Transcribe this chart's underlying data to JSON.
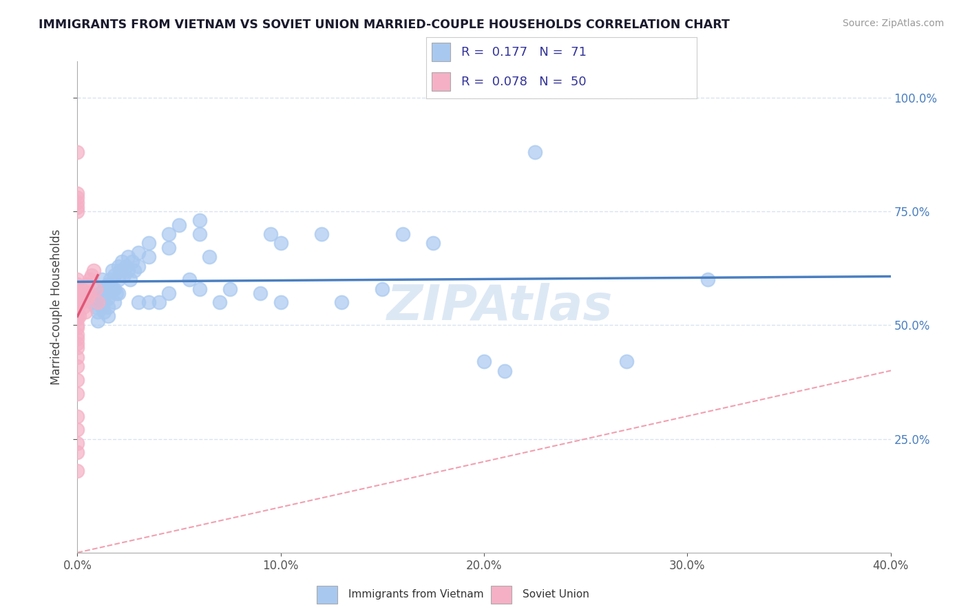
{
  "title": "IMMIGRANTS FROM VIETNAM VS SOVIET UNION MARRIED-COUPLE HOUSEHOLDS CORRELATION CHART",
  "source": "Source: ZipAtlas.com",
  "ylabel": "Married-couple Households",
  "xlim": [
    0.0,
    0.4
  ],
  "ylim": [
    0.0,
    1.08
  ],
  "xtick_vals": [
    0.0,
    0.1,
    0.2,
    0.3,
    0.4
  ],
  "ytick_vals": [
    0.25,
    0.5,
    0.75,
    1.0
  ],
  "legend_vietnam_label": "Immigrants from Vietnam",
  "legend_soviet_label": "Soviet Union",
  "vietnam_R": 0.177,
  "vietnam_N": 71,
  "soviet_R": 0.078,
  "soviet_N": 50,
  "vietnam_color": "#a8c8f0",
  "soviet_color": "#f5b0c5",
  "vietnam_line_color": "#4a7fc1",
  "soviet_line_color": "#e05575",
  "diagonal_color": "#f0a0b0",
  "grid_color": "#d8e4f0",
  "watermark_color": "#dde8f5",
  "vietnam_scatter": [
    [
      0.005,
      0.57
    ],
    [
      0.007,
      0.55
    ],
    [
      0.008,
      0.56
    ],
    [
      0.009,
      0.54
    ],
    [
      0.01,
      0.58
    ],
    [
      0.01,
      0.55
    ],
    [
      0.01,
      0.53
    ],
    [
      0.01,
      0.51
    ],
    [
      0.011,
      0.57
    ],
    [
      0.012,
      0.6
    ],
    [
      0.012,
      0.56
    ],
    [
      0.012,
      0.54
    ],
    [
      0.013,
      0.58
    ],
    [
      0.013,
      0.55
    ],
    [
      0.013,
      0.53
    ],
    [
      0.014,
      0.57
    ],
    [
      0.015,
      0.59
    ],
    [
      0.015,
      0.56
    ],
    [
      0.015,
      0.54
    ],
    [
      0.015,
      0.52
    ],
    [
      0.016,
      0.6
    ],
    [
      0.017,
      0.62
    ],
    [
      0.017,
      0.58
    ],
    [
      0.018,
      0.61
    ],
    [
      0.018,
      0.58
    ],
    [
      0.018,
      0.55
    ],
    [
      0.019,
      0.57
    ],
    [
      0.02,
      0.63
    ],
    [
      0.02,
      0.6
    ],
    [
      0.02,
      0.57
    ],
    [
      0.021,
      0.62
    ],
    [
      0.022,
      0.64
    ],
    [
      0.023,
      0.61
    ],
    [
      0.024,
      0.63
    ],
    [
      0.025,
      0.65
    ],
    [
      0.025,
      0.62
    ],
    [
      0.026,
      0.6
    ],
    [
      0.027,
      0.64
    ],
    [
      0.028,
      0.62
    ],
    [
      0.03,
      0.66
    ],
    [
      0.03,
      0.63
    ],
    [
      0.03,
      0.55
    ],
    [
      0.035,
      0.68
    ],
    [
      0.035,
      0.65
    ],
    [
      0.035,
      0.55
    ],
    [
      0.04,
      0.55
    ],
    [
      0.045,
      0.7
    ],
    [
      0.045,
      0.67
    ],
    [
      0.045,
      0.57
    ],
    [
      0.05,
      0.72
    ],
    [
      0.055,
      0.6
    ],
    [
      0.06,
      0.73
    ],
    [
      0.06,
      0.7
    ],
    [
      0.06,
      0.58
    ],
    [
      0.065,
      0.65
    ],
    [
      0.07,
      0.55
    ],
    [
      0.075,
      0.58
    ],
    [
      0.09,
      0.57
    ],
    [
      0.095,
      0.7
    ],
    [
      0.1,
      0.68
    ],
    [
      0.1,
      0.55
    ],
    [
      0.12,
      0.7
    ],
    [
      0.13,
      0.55
    ],
    [
      0.15,
      0.58
    ],
    [
      0.16,
      0.7
    ],
    [
      0.175,
      0.68
    ],
    [
      0.2,
      0.42
    ],
    [
      0.21,
      0.4
    ],
    [
      0.225,
      0.88
    ],
    [
      0.27,
      0.42
    ],
    [
      0.31,
      0.6
    ]
  ],
  "soviet_scatter": [
    [
      0.0,
      0.88
    ],
    [
      0.0,
      0.79
    ],
    [
      0.0,
      0.78
    ],
    [
      0.0,
      0.77
    ],
    [
      0.0,
      0.76
    ],
    [
      0.0,
      0.75
    ],
    [
      0.0,
      0.6
    ],
    [
      0.0,
      0.59
    ],
    [
      0.0,
      0.58
    ],
    [
      0.0,
      0.57
    ],
    [
      0.0,
      0.56
    ],
    [
      0.0,
      0.555
    ],
    [
      0.0,
      0.55
    ],
    [
      0.0,
      0.545
    ],
    [
      0.0,
      0.54
    ],
    [
      0.0,
      0.53
    ],
    [
      0.0,
      0.52
    ],
    [
      0.0,
      0.515
    ],
    [
      0.0,
      0.5
    ],
    [
      0.0,
      0.495
    ],
    [
      0.0,
      0.48
    ],
    [
      0.0,
      0.47
    ],
    [
      0.0,
      0.46
    ],
    [
      0.0,
      0.45
    ],
    [
      0.0,
      0.43
    ],
    [
      0.0,
      0.41
    ],
    [
      0.0,
      0.38
    ],
    [
      0.0,
      0.35
    ],
    [
      0.0,
      0.3
    ],
    [
      0.0,
      0.27
    ],
    [
      0.0,
      0.24
    ],
    [
      0.0,
      0.22
    ],
    [
      0.0,
      0.18
    ],
    [
      0.001,
      0.57
    ],
    [
      0.001,
      0.55
    ],
    [
      0.001,
      0.52
    ],
    [
      0.002,
      0.58
    ],
    [
      0.002,
      0.55
    ],
    [
      0.003,
      0.57
    ],
    [
      0.003,
      0.54
    ],
    [
      0.004,
      0.56
    ],
    [
      0.004,
      0.53
    ],
    [
      0.005,
      0.59
    ],
    [
      0.005,
      0.56
    ],
    [
      0.006,
      0.6
    ],
    [
      0.006,
      0.57
    ],
    [
      0.007,
      0.61
    ],
    [
      0.008,
      0.62
    ],
    [
      0.009,
      0.58
    ],
    [
      0.01,
      0.55
    ]
  ]
}
